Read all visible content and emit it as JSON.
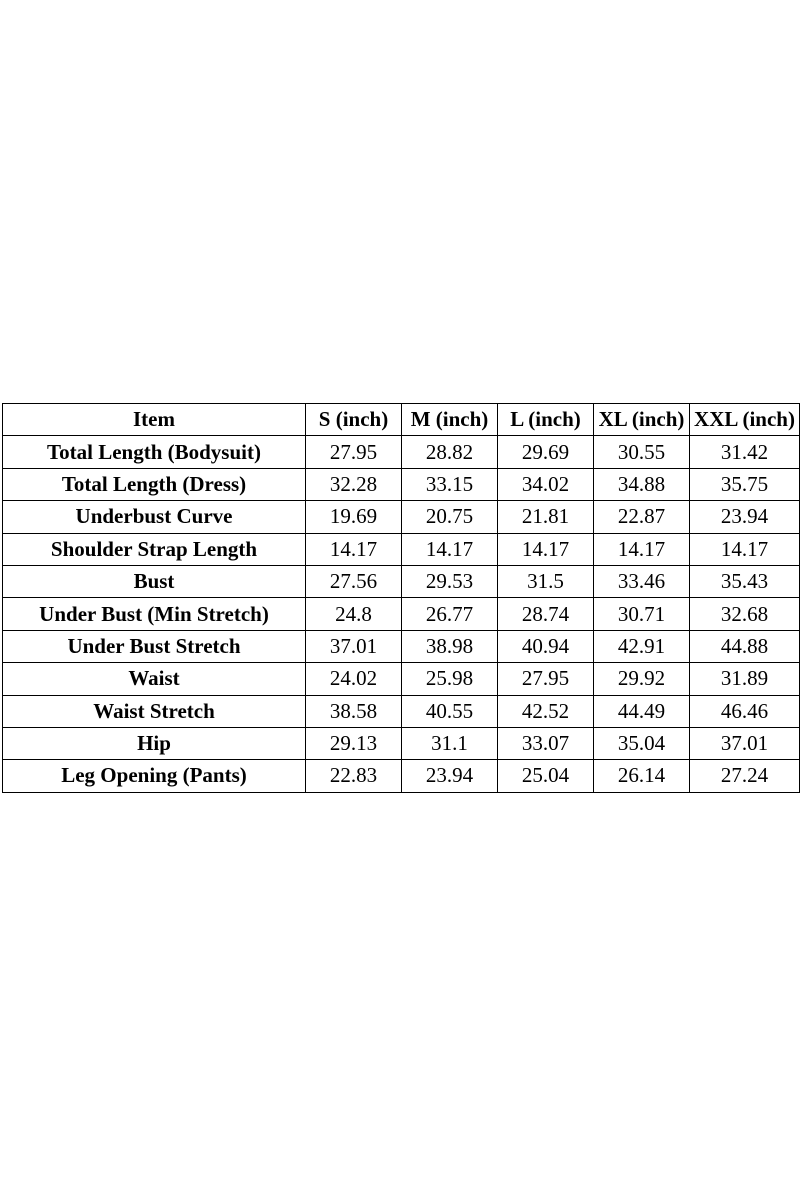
{
  "table": {
    "header": [
      "Item",
      "S (inch)",
      "M (inch)",
      "L (inch)",
      "XL (inch)",
      "XXL (inch)"
    ],
    "rows": [
      [
        "Total Length (Bodysuit)",
        "27.95",
        "28.82",
        "29.69",
        "30.55",
        "31.42"
      ],
      [
        "Total Length (Dress)",
        "32.28",
        "33.15",
        "34.02",
        "34.88",
        "35.75"
      ],
      [
        "Underbust Curve",
        "19.69",
        "20.75",
        "21.81",
        "22.87",
        "23.94"
      ],
      [
        "Shoulder Strap Length",
        "14.17",
        "14.17",
        "14.17",
        "14.17",
        "14.17"
      ],
      [
        "Bust",
        "27.56",
        "29.53",
        "31.5",
        "33.46",
        "35.43"
      ],
      [
        "Under Bust (Min Stretch)",
        "24.8",
        "26.77",
        "28.74",
        "30.71",
        "32.68"
      ],
      [
        "Under Bust Stretch",
        "37.01",
        "38.98",
        "40.94",
        "42.91",
        "44.88"
      ],
      [
        "Waist",
        "24.02",
        "25.98",
        "27.95",
        "29.92",
        "31.89"
      ],
      [
        "Waist Stretch",
        "38.58",
        "40.55",
        "42.52",
        "44.49",
        "46.46"
      ],
      [
        "Hip",
        "29.13",
        "31.1",
        "33.07",
        "35.04",
        "37.01"
      ],
      [
        "Leg Opening (Pants)",
        "22.83",
        "23.94",
        "25.04",
        "26.14",
        "27.24"
      ]
    ]
  }
}
